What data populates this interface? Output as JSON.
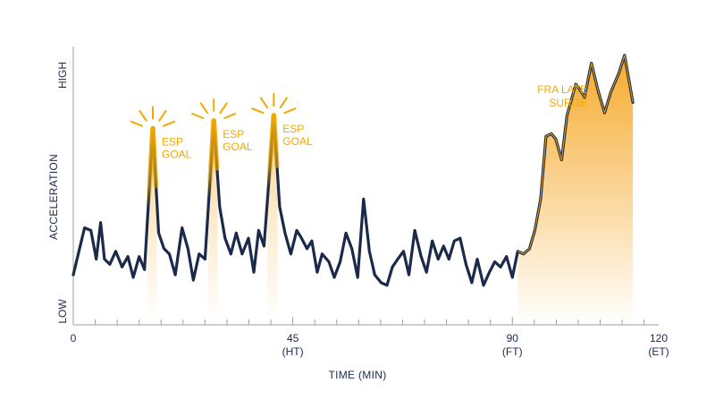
{
  "chart_data": {
    "type": "line",
    "title": "",
    "xlabel": "TIME (MIN)",
    "ylabel": "ACCELERATION",
    "y_tick_labels": {
      "low": "LOW",
      "high": "HIGH"
    },
    "xlim": [
      0,
      120
    ],
    "ylim": [
      0,
      100
    ],
    "x_ticks": [
      {
        "value": 0,
        "label": "0",
        "sublabel": ""
      },
      {
        "value": 45,
        "label": "45",
        "sublabel": "(HT)"
      },
      {
        "value": 90,
        "label": "90",
        "sublabel": "(FT)"
      },
      {
        "value": 120,
        "label": "120",
        "sublabel": "(ET)"
      }
    ],
    "minor_tick_step": 4.5,
    "colors": {
      "line": "#1b2a4a",
      "highlight": "#f2a900",
      "fill": "#f7b733",
      "axis": "#9aa0a6"
    },
    "series": [
      {
        "values": [
          [
            0,
            14
          ],
          [
            2.3,
            32
          ],
          [
            3.6,
            31
          ],
          [
            4.7,
            20
          ],
          [
            5.6,
            34
          ],
          [
            6.4,
            20
          ],
          [
            7.5,
            18
          ],
          [
            8.7,
            23
          ],
          [
            10,
            17
          ],
          [
            11.2,
            21
          ],
          [
            12.3,
            13
          ],
          [
            13.5,
            21
          ],
          [
            14.6,
            16
          ],
          [
            16.3,
            70
          ],
          [
            17.5,
            30
          ],
          [
            18.6,
            24
          ],
          [
            19.7,
            22
          ],
          [
            20.9,
            14
          ],
          [
            22.3,
            32
          ],
          [
            23.5,
            24
          ],
          [
            24.6,
            12
          ],
          [
            25.8,
            22
          ],
          [
            27,
            20
          ],
          [
            28.8,
            73
          ],
          [
            30,
            40
          ],
          [
            31.1,
            28
          ],
          [
            32.3,
            22
          ],
          [
            33.4,
            30
          ],
          [
            34.6,
            22
          ],
          [
            35.9,
            28
          ],
          [
            37,
            15
          ],
          [
            38,
            31
          ],
          [
            39.1,
            25
          ],
          [
            41.1,
            75
          ],
          [
            42.3,
            40
          ],
          [
            43.4,
            30
          ],
          [
            44.6,
            22
          ],
          [
            45.8,
            31
          ],
          [
            46.8,
            28
          ],
          [
            47.9,
            24
          ],
          [
            48.9,
            27
          ],
          [
            50,
            15
          ],
          [
            51,
            22
          ],
          [
            52.4,
            19
          ],
          [
            53.5,
            13
          ],
          [
            54.7,
            19
          ],
          [
            55.9,
            30
          ],
          [
            57.1,
            24
          ],
          [
            58.3,
            13
          ],
          [
            59.5,
            43
          ],
          [
            60.7,
            23
          ],
          [
            61.8,
            14
          ],
          [
            63.1,
            11
          ],
          [
            64.3,
            10
          ],
          [
            65.4,
            17
          ],
          [
            66.5,
            20
          ],
          [
            67.7,
            23
          ],
          [
            68.8,
            14
          ],
          [
            70,
            31
          ],
          [
            71.3,
            21
          ],
          [
            72.4,
            15
          ],
          [
            73.6,
            27
          ],
          [
            74.8,
            20
          ],
          [
            75.9,
            25
          ],
          [
            77,
            20
          ],
          [
            78.1,
            27
          ],
          [
            79.3,
            28
          ],
          [
            80.5,
            18
          ],
          [
            81.7,
            11
          ],
          [
            82.8,
            20
          ],
          [
            84.1,
            10
          ],
          [
            85.3,
            15
          ],
          [
            86.4,
            19
          ],
          [
            87.6,
            17
          ],
          [
            88.8,
            21
          ],
          [
            90,
            13
          ],
          [
            91.1,
            23
          ],
          [
            92.3,
            22
          ],
          [
            93.5,
            24
          ],
          [
            94.6,
            31
          ],
          [
            95.8,
            43
          ],
          [
            96.9,
            67
          ],
          [
            98,
            68
          ],
          [
            98.9,
            66
          ],
          [
            100.1,
            58
          ],
          [
            101.2,
            75
          ],
          [
            103,
            87
          ],
          [
            103.8,
            85
          ],
          [
            104.8,
            82
          ],
          [
            106.2,
            95
          ],
          [
            107.5,
            85
          ],
          [
            108.9,
            76
          ],
          [
            110.2,
            84
          ],
          [
            111.8,
            91
          ],
          [
            113,
            98
          ],
          [
            114.7,
            80
          ]
        ]
      }
    ],
    "highlights": [
      {
        "type": "peak",
        "x": 16.3,
        "label_lines": [
          "ESP",
          "GOAL"
        ]
      },
      {
        "type": "peak",
        "x": 28.8,
        "label_lines": [
          "ESP",
          "GOAL"
        ]
      },
      {
        "type": "peak",
        "x": 41.1,
        "label_lines": [
          "ESP",
          "GOAL"
        ]
      },
      {
        "type": "range",
        "x_start": 91.1,
        "x_end": 114.7,
        "label_lines": [
          "FRA LATE",
          "SURGE"
        ]
      }
    ]
  }
}
